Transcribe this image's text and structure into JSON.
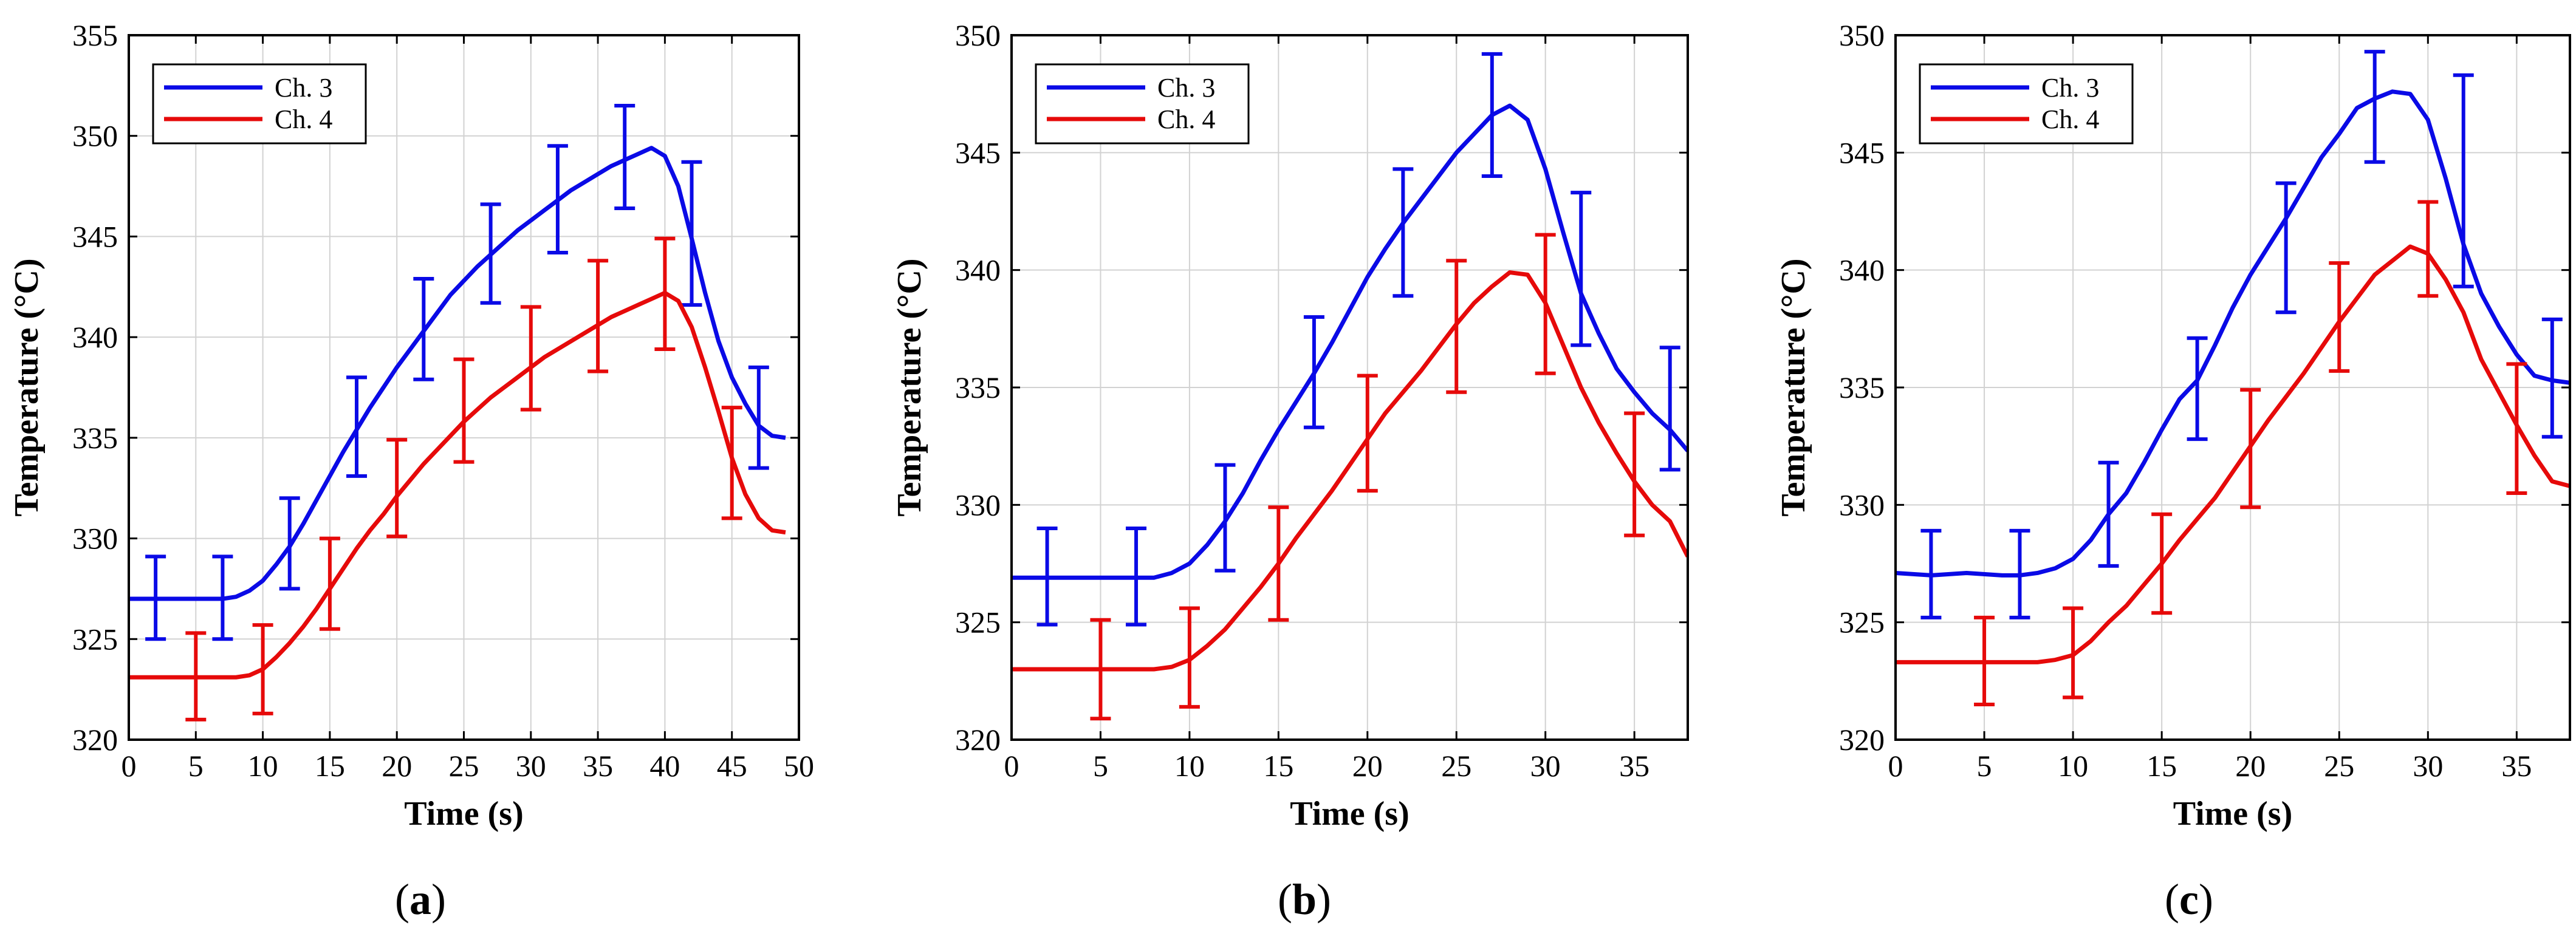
{
  "chart_data": [
    {
      "type": "line",
      "panel": "a",
      "xlabel": "Time (s)",
      "ylabel": "Temperature (°C)",
      "xlim": [
        0,
        50
      ],
      "ylim": [
        320,
        355
      ],
      "xticks": [
        0,
        5,
        10,
        15,
        20,
        25,
        30,
        35,
        40,
        45,
        50
      ],
      "yticks": [
        320,
        325,
        330,
        335,
        340,
        345,
        350,
        355
      ],
      "legend_position": "top-left",
      "series": [
        {
          "name": "Ch. 3",
          "color": "#0a0ae6",
          "x": [
            0,
            2,
            4,
            6,
            7,
            8,
            9,
            10,
            11,
            12,
            13,
            14,
            15,
            16,
            17,
            18,
            19,
            20,
            21,
            22,
            23,
            24,
            25,
            26,
            27,
            28,
            29,
            30,
            31,
            32,
            33,
            34,
            35,
            36,
            37,
            38,
            39,
            40,
            41,
            42,
            43,
            44,
            45,
            46,
            47,
            48,
            49
          ],
          "y": [
            327,
            327,
            327,
            327,
            327,
            327.1,
            327.4,
            327.9,
            328.7,
            329.6,
            330.7,
            331.9,
            333.1,
            334.3,
            335.4,
            336.5,
            337.5,
            338.5,
            339.4,
            340.3,
            341.2,
            342.1,
            342.8,
            343.5,
            344.1,
            344.7,
            345.3,
            345.8,
            346.3,
            346.8,
            347.3,
            347.7,
            348.1,
            348.5,
            348.8,
            349.1,
            349.4,
            349.0,
            347.5,
            344.9,
            342.2,
            339.8,
            338.0,
            336.7,
            335.6,
            335.1,
            335.0
          ],
          "error_bars": [
            {
              "x": 2,
              "y": 327,
              "lo": 325.0,
              "hi": 329.1
            },
            {
              "x": 7,
              "y": 327,
              "lo": 325.0,
              "hi": 329.1
            },
            {
              "x": 12,
              "y": 329.6,
              "lo": 327.5,
              "hi": 332.0
            },
            {
              "x": 17,
              "y": 335.4,
              "lo": 333.1,
              "hi": 338.0
            },
            {
              "x": 22,
              "y": 340.3,
              "lo": 337.9,
              "hi": 342.9
            },
            {
              "x": 27,
              "y": 344.1,
              "lo": 341.7,
              "hi": 346.6
            },
            {
              "x": 32,
              "y": 346.8,
              "lo": 344.2,
              "hi": 349.5
            },
            {
              "x": 37,
              "y": 348.8,
              "lo": 346.4,
              "hi": 351.5
            },
            {
              "x": 42,
              "y": 344.9,
              "lo": 341.6,
              "hi": 348.7
            },
            {
              "x": 47,
              "y": 335.6,
              "lo": 333.5,
              "hi": 338.5
            }
          ]
        },
        {
          "name": "Ch. 4",
          "color": "#e60a0a",
          "x": [
            0,
            2,
            4,
            6,
            8,
            9,
            10,
            11,
            12,
            13,
            14,
            15,
            16,
            17,
            18,
            19,
            20,
            21,
            22,
            23,
            24,
            25,
            26,
            27,
            28,
            29,
            30,
            31,
            32,
            33,
            34,
            35,
            36,
            37,
            38,
            39,
            40,
            41,
            42,
            43,
            44,
            45,
            46,
            47,
            48,
            49
          ],
          "y": [
            323.1,
            323.1,
            323.1,
            323.1,
            323.1,
            323.2,
            323.5,
            324.1,
            324.8,
            325.6,
            326.5,
            327.5,
            328.5,
            329.5,
            330.4,
            331.2,
            332.1,
            332.9,
            333.7,
            334.4,
            335.1,
            335.8,
            336.4,
            337.0,
            337.5,
            338.0,
            338.5,
            339.0,
            339.4,
            339.8,
            340.2,
            340.6,
            341.0,
            341.3,
            341.6,
            341.9,
            342.2,
            341.8,
            340.5,
            338.5,
            336.3,
            334.0,
            332.2,
            331.0,
            330.4,
            330.3
          ],
          "error_bars": [
            {
              "x": 5,
              "y": 323.1,
              "lo": 321.0,
              "hi": 325.3
            },
            {
              "x": 10,
              "y": 323.5,
              "lo": 321.3,
              "hi": 325.7
            },
            {
              "x": 15,
              "y": 327.5,
              "lo": 325.5,
              "hi": 330.0
            },
            {
              "x": 20,
              "y": 332.1,
              "lo": 330.1,
              "hi": 334.9
            },
            {
              "x": 25,
              "y": 335.8,
              "lo": 333.8,
              "hi": 338.9
            },
            {
              "x": 30,
              "y": 338.5,
              "lo": 336.4,
              "hi": 341.5
            },
            {
              "x": 35,
              "y": 340.6,
              "lo": 338.3,
              "hi": 343.8
            },
            {
              "x": 40,
              "y": 342.2,
              "lo": 339.4,
              "hi": 344.9
            },
            {
              "x": 45,
              "y": 334.0,
              "lo": 331.0,
              "hi": 336.5
            }
          ]
        }
      ]
    },
    {
      "type": "line",
      "panel": "b",
      "xlabel": "Time (s)",
      "ylabel": "Temperature (°C)",
      "xlim": [
        0,
        38
      ],
      "ylim": [
        320,
        350
      ],
      "xticks": [
        0,
        5,
        10,
        15,
        20,
        25,
        30,
        35
      ],
      "yticks": [
        320,
        325,
        330,
        335,
        340,
        345,
        350
      ],
      "legend_position": "top-left",
      "series": [
        {
          "name": "Ch. 3",
          "color": "#0a0ae6",
          "x": [
            0,
            2,
            4,
            6,
            7,
            8,
            9,
            10,
            11,
            12,
            13,
            14,
            15,
            16,
            17,
            18,
            19,
            20,
            21,
            22,
            23,
            24,
            25,
            26,
            27,
            28,
            29,
            30,
            31,
            32,
            33,
            34,
            35,
            36,
            37,
            38
          ],
          "y": [
            326.9,
            326.9,
            326.9,
            326.9,
            326.9,
            326.9,
            327.1,
            327.5,
            328.3,
            329.3,
            330.5,
            331.9,
            333.2,
            334.4,
            335.6,
            336.9,
            338.3,
            339.7,
            340.9,
            342.0,
            343.0,
            344.0,
            345.0,
            345.8,
            346.6,
            347.0,
            346.4,
            344.3,
            341.6,
            339.0,
            337.3,
            335.8,
            334.8,
            333.9,
            333.2,
            332.3
          ],
          "error_bars": [
            {
              "x": 2,
              "y": 326.9,
              "lo": 324.9,
              "hi": 329.0
            },
            {
              "x": 7,
              "y": 326.9,
              "lo": 324.9,
              "hi": 329.0
            },
            {
              "x": 12,
              "y": 329.3,
              "lo": 327.2,
              "hi": 331.7
            },
            {
              "x": 17,
              "y": 335.6,
              "lo": 333.3,
              "hi": 338.0
            },
            {
              "x": 22,
              "y": 342.0,
              "lo": 338.9,
              "hi": 344.3
            },
            {
              "x": 27,
              "y": 346.6,
              "lo": 344.0,
              "hi": 349.2
            },
            {
              "x": 32,
              "y": 339.0,
              "lo": 336.8,
              "hi": 343.3
            },
            {
              "x": 37,
              "y": 333.2,
              "lo": 331.5,
              "hi": 336.7
            }
          ]
        },
        {
          "name": "Ch. 4",
          "color": "#e60a0a",
          "x": [
            0,
            2,
            4,
            6,
            8,
            9,
            10,
            11,
            12,
            13,
            14,
            15,
            16,
            17,
            18,
            19,
            20,
            21,
            22,
            23,
            24,
            25,
            26,
            27,
            28,
            29,
            30,
            31,
            32,
            33,
            34,
            35,
            36,
            37,
            38
          ],
          "y": [
            323.0,
            323.0,
            323.0,
            323.0,
            323.0,
            323.1,
            323.4,
            324.0,
            324.7,
            325.6,
            326.5,
            327.5,
            328.6,
            329.6,
            330.6,
            331.7,
            332.8,
            333.9,
            334.8,
            335.7,
            336.7,
            337.7,
            338.6,
            339.3,
            339.9,
            339.8,
            338.6,
            336.8,
            335.0,
            333.5,
            332.2,
            331.0,
            330.0,
            329.3,
            327.8
          ],
          "error_bars": [
            {
              "x": 5,
              "y": 323.0,
              "lo": 320.9,
              "hi": 325.1
            },
            {
              "x": 10,
              "y": 323.4,
              "lo": 321.4,
              "hi": 325.6
            },
            {
              "x": 15,
              "y": 327.5,
              "lo": 325.1,
              "hi": 329.9
            },
            {
              "x": 20,
              "y": 332.8,
              "lo": 330.6,
              "hi": 335.5
            },
            {
              "x": 25,
              "y": 337.7,
              "lo": 334.8,
              "hi": 340.4
            },
            {
              "x": 30,
              "y": 338.6,
              "lo": 335.6,
              "hi": 341.5
            },
            {
              "x": 35,
              "y": 331.0,
              "lo": 328.7,
              "hi": 333.9
            }
          ]
        }
      ]
    },
    {
      "type": "line",
      "panel": "c",
      "xlabel": "Time (s)",
      "ylabel": "Temperature (°C)",
      "xlim": [
        0,
        38
      ],
      "ylim": [
        320,
        350
      ],
      "xticks": [
        0,
        5,
        10,
        15,
        20,
        25,
        30,
        35
      ],
      "yticks": [
        320,
        325,
        330,
        335,
        340,
        345,
        350
      ],
      "legend_position": "top-left",
      "series": [
        {
          "name": "Ch. 3",
          "color": "#0a0ae6",
          "x": [
            0,
            2,
            4,
            6,
            7,
            8,
            9,
            10,
            11,
            12,
            13,
            14,
            15,
            16,
            17,
            18,
            19,
            20,
            21,
            22,
            23,
            24,
            25,
            26,
            27,
            28,
            29,
            30,
            31,
            32,
            33,
            34,
            35,
            36,
            37,
            38
          ],
          "y": [
            327.1,
            327.0,
            327.1,
            327.0,
            327.0,
            327.1,
            327.3,
            327.7,
            328.5,
            329.6,
            330.5,
            331.8,
            333.2,
            334.5,
            335.3,
            336.8,
            338.4,
            339.8,
            341.0,
            342.2,
            343.5,
            344.8,
            345.8,
            346.9,
            347.3,
            347.6,
            347.5,
            346.4,
            343.9,
            341.1,
            339.0,
            337.6,
            336.4,
            335.5,
            335.3,
            335.2
          ],
          "error_bars": [
            {
              "x": 2,
              "y": 327.0,
              "lo": 325.2,
              "hi": 328.9
            },
            {
              "x": 7,
              "y": 327.0,
              "lo": 325.2,
              "hi": 328.9
            },
            {
              "x": 12,
              "y": 329.6,
              "lo": 327.4,
              "hi": 331.8
            },
            {
              "x": 17,
              "y": 335.3,
              "lo": 332.8,
              "hi": 337.1
            },
            {
              "x": 22,
              "y": 342.2,
              "lo": 338.2,
              "hi": 343.7
            },
            {
              "x": 27,
              "y": 347.3,
              "lo": 344.6,
              "hi": 349.3
            },
            {
              "x": 32,
              "y": 341.1,
              "lo": 339.3,
              "hi": 348.3
            },
            {
              "x": 37,
              "y": 335.3,
              "lo": 332.9,
              "hi": 337.9
            }
          ]
        },
        {
          "name": "Ch. 4",
          "color": "#e60a0a",
          "x": [
            0,
            2,
            4,
            6,
            8,
            9,
            10,
            11,
            12,
            13,
            14,
            15,
            16,
            17,
            18,
            19,
            20,
            21,
            22,
            23,
            24,
            25,
            26,
            27,
            28,
            29,
            30,
            31,
            32,
            33,
            34,
            35,
            36,
            37,
            38
          ],
          "y": [
            323.3,
            323.3,
            323.3,
            323.3,
            323.3,
            323.4,
            323.6,
            324.2,
            325.0,
            325.7,
            326.6,
            327.5,
            328.5,
            329.4,
            330.3,
            331.4,
            332.5,
            333.6,
            334.6,
            335.6,
            336.7,
            337.8,
            338.8,
            339.8,
            340.4,
            341.0,
            340.7,
            339.6,
            338.2,
            336.2,
            334.8,
            333.4,
            332.1,
            331.0,
            330.8
          ],
          "error_bars": [
            {
              "x": 5,
              "y": 323.3,
              "lo": 321.5,
              "hi": 325.2
            },
            {
              "x": 10,
              "y": 323.6,
              "lo": 321.8,
              "hi": 325.6
            },
            {
              "x": 15,
              "y": 327.5,
              "lo": 325.4,
              "hi": 329.6
            },
            {
              "x": 20,
              "y": 332.5,
              "lo": 329.9,
              "hi": 334.9
            },
            {
              "x": 25,
              "y": 337.8,
              "lo": 335.7,
              "hi": 340.3
            },
            {
              "x": 30,
              "y": 340.7,
              "lo": 338.9,
              "hi": 342.9
            },
            {
              "x": 35,
              "y": 333.4,
              "lo": 330.5,
              "hi": 336.0
            }
          ]
        }
      ]
    }
  ],
  "captions": [
    {
      "open": "(",
      "letter": "a",
      "close": ")"
    },
    {
      "open": "(",
      "letter": "b",
      "close": ")"
    },
    {
      "open": "(",
      "letter": "c",
      "close": ")"
    }
  ]
}
